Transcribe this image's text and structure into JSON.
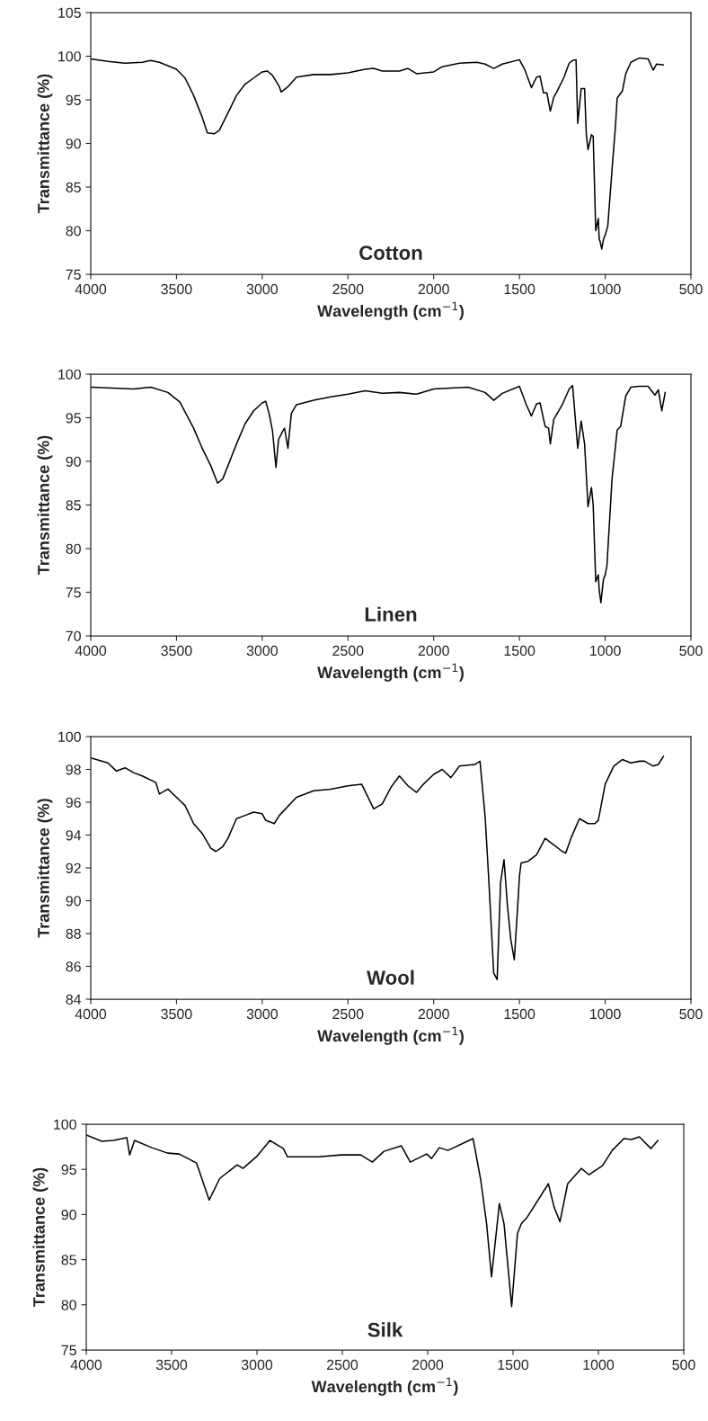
{
  "chart_data": [
    {
      "type": "line",
      "xlabel": "Wavelength (cm$^{−1}$)",
      "ylabel": "Transmittance (%)",
      "annotations": [
        "Cotton"
      ],
      "xlim": [
        4000,
        500
      ],
      "xticks": [
        4000,
        3500,
        3000,
        2500,
        2000,
        1500,
        1000,
        500
      ],
      "ylim": [
        75,
        105
      ],
      "yticks": [
        75,
        80,
        85,
        90,
        95,
        100,
        105
      ],
      "grid": false,
      "legend": false,
      "marker": "none",
      "line_style": "solid",
      "series": [
        {
          "color": "#000000",
          "x": [
            4000,
            3900,
            3800,
            3700,
            3650,
            3600,
            3500,
            3450,
            3400,
            3350,
            3320,
            3280,
            3250,
            3200,
            3150,
            3100,
            3050,
            3000,
            2970,
            2940,
            2900,
            2890,
            2850,
            2800,
            2700,
            2600,
            2500,
            2400,
            2350,
            2300,
            2200,
            2150,
            2100,
            2000,
            1950,
            1850,
            1750,
            1700,
            1650,
            1600,
            1500,
            1470,
            1430,
            1400,
            1380,
            1360,
            1340,
            1320,
            1300,
            1280,
            1240,
            1210,
            1190,
            1170,
            1160,
            1140,
            1120,
            1110,
            1100,
            1080,
            1070,
            1055,
            1040,
            1035,
            1030,
            1020,
            1010,
            1000,
            985,
            960,
            940,
            930,
            900,
            880,
            850,
            800,
            750,
            720,
            700,
            660
          ],
          "values": [
            99.7,
            99.4,
            99.2,
            99.3,
            99.5,
            99.3,
            98.5,
            97.5,
            95.5,
            93,
            91.2,
            91.1,
            91.5,
            93.5,
            95.5,
            96.8,
            97.5,
            98.2,
            98.3,
            97.8,
            96.5,
            95.9,
            96.5,
            97.6,
            97.9,
            97.9,
            98.1,
            98.5,
            98.6,
            98.3,
            98.3,
            98.6,
            98.0,
            98.2,
            98.8,
            99.2,
            99.3,
            99.1,
            98.6,
            99.1,
            99.6,
            98.5,
            96.4,
            97.6,
            97.7,
            95.8,
            95.8,
            93.7,
            95.3,
            96.0,
            97.6,
            99.2,
            99.5,
            99.6,
            92.3,
            96.3,
            96.3,
            91.0,
            89.3,
            91.0,
            90.8,
            80.0,
            81.4,
            79.0,
            78.8,
            77.9,
            79.0,
            79.5,
            80.5,
            87,
            92,
            95.2,
            96,
            98,
            99.3,
            99.8,
            99.7,
            98.4,
            99.1,
            99.0
          ]
        }
      ]
    },
    {
      "type": "line",
      "xlabel": "Wavelength (cm$^{−1}$)",
      "ylabel": "Transmittance (%)",
      "annotations": [
        "Linen"
      ],
      "xlim": [
        4000,
        500
      ],
      "xticks": [
        4000,
        3500,
        3000,
        2500,
        2000,
        1500,
        1000,
        500
      ],
      "ylim": [
        70,
        100
      ],
      "yticks": [
        70,
        75,
        80,
        85,
        90,
        95,
        100
      ],
      "grid": false,
      "legend": false,
      "marker": "none",
      "line_style": "solid",
      "series": [
        {
          "color": "#000000",
          "x": [
            4000,
            3750,
            3650,
            3550,
            3480,
            3400,
            3350,
            3300,
            3260,
            3230,
            3200,
            3150,
            3100,
            3050,
            3000,
            2980,
            2960,
            2940,
            2920,
            2905,
            2880,
            2870,
            2850,
            2830,
            2800,
            2700,
            2600,
            2500,
            2400,
            2300,
            2200,
            2100,
            2000,
            1900,
            1800,
            1700,
            1650,
            1600,
            1500,
            1460,
            1430,
            1400,
            1380,
            1350,
            1330,
            1320,
            1300,
            1250,
            1210,
            1190,
            1160,
            1140,
            1120,
            1100,
            1080,
            1070,
            1055,
            1040,
            1035,
            1025,
            1010,
            1000,
            990,
            960,
            930,
            910,
            880,
            850,
            800,
            750,
            710,
            690,
            670,
            650
          ],
          "values": [
            98.5,
            98.3,
            98.5,
            97.9,
            96.8,
            93.8,
            91.5,
            89.5,
            87.5,
            88,
            89.5,
            92,
            94.3,
            95.8,
            96.7,
            96.9,
            95.5,
            93.5,
            89.3,
            92.5,
            93.5,
            93.8,
            91.5,
            95.5,
            96.5,
            97.0,
            97.4,
            97.7,
            98.1,
            97.8,
            97.9,
            97.7,
            98.3,
            98.4,
            98.5,
            97.9,
            97.0,
            97.8,
            98.6,
            96.5,
            95.2,
            96.6,
            96.7,
            94.0,
            93.8,
            92.0,
            94.8,
            96.5,
            98.3,
            98.7,
            91.5,
            94.6,
            92,
            84.8,
            87.0,
            85,
            76.2,
            77.0,
            75.3,
            73.8,
            76.5,
            77.0,
            78,
            88,
            93.6,
            94.0,
            97.5,
            98.5,
            98.6,
            98.6,
            97.6,
            98.2,
            95.8,
            97.9
          ]
        }
      ]
    },
    {
      "type": "line",
      "xlabel": "Wavelength (cm$^{−1}$)",
      "ylabel": "Transmittance (%)",
      "annotations": [
        "Wool"
      ],
      "xlim": [
        4000,
        500
      ],
      "xticks": [
        4000,
        3500,
        3000,
        2500,
        2000,
        1500,
        1000,
        500
      ],
      "ylim": [
        84,
        100
      ],
      "yticks": [
        84,
        86,
        88,
        90,
        92,
        94,
        96,
        98,
        100
      ],
      "grid": false,
      "legend": false,
      "marker": "none",
      "line_style": "solid",
      "series": [
        {
          "color": "#000000",
          "x": [
            4000,
            3900,
            3850,
            3800,
            3750,
            3700,
            3620,
            3600,
            3550,
            3500,
            3450,
            3400,
            3350,
            3300,
            3270,
            3230,
            3200,
            3150,
            3100,
            3050,
            3000,
            2980,
            2930,
            2900,
            2800,
            2700,
            2600,
            2500,
            2420,
            2350,
            2300,
            2250,
            2200,
            2150,
            2100,
            2060,
            2000,
            1950,
            1900,
            1850,
            1760,
            1730,
            1700,
            1680,
            1650,
            1630,
            1610,
            1590,
            1570,
            1550,
            1530,
            1510,
            1500,
            1490,
            1450,
            1400,
            1350,
            1300,
            1250,
            1230,
            1200,
            1150,
            1100,
            1060,
            1040,
            1000,
            950,
            900,
            850,
            800,
            770,
            720,
            690,
            660
          ],
          "values": [
            98.7,
            98.4,
            97.9,
            98.1,
            97.8,
            97.6,
            97.2,
            96.5,
            96.8,
            96.3,
            95.8,
            94.7,
            94.1,
            93.2,
            93.0,
            93.3,
            93.8,
            95.0,
            95.2,
            95.4,
            95.3,
            94.9,
            94.7,
            95.2,
            96.3,
            96.7,
            96.8,
            97.0,
            97.1,
            95.6,
            95.9,
            96.9,
            97.6,
            97.0,
            96.6,
            97.1,
            97.7,
            98.0,
            97.5,
            98.2,
            98.3,
            98.5,
            95.1,
            91.5,
            85.6,
            85.2,
            91.1,
            92.5,
            89.7,
            87.6,
            86.4,
            89.7,
            91.5,
            92.3,
            92.4,
            92.8,
            93.8,
            93.4,
            93.0,
            92.9,
            93.8,
            95.0,
            94.7,
            94.7,
            94.9,
            97.1,
            98.2,
            98.6,
            98.4,
            98.5,
            98.5,
            98.2,
            98.3,
            98.8
          ]
        }
      ]
    },
    {
      "type": "line",
      "xlabel": "Wavelength (cm$^{−1}$)",
      "ylabel": "Transmittance (%)",
      "annotations": [
        "Silk"
      ],
      "xlim": [
        4000,
        500
      ],
      "xticks": [
        4000,
        3500,
        3000,
        2500,
        2000,
        1500,
        1000,
        500
      ],
      "ylim": [
        75,
        100
      ],
      "yticks": [
        75,
        80,
        85,
        90,
        95,
        100
      ],
      "grid": false,
      "legend": false,
      "marker": "none",
      "line_style": "solid",
      "series": [
        {
          "color": "#000000",
          "x": [
            4000,
            3909,
            3841,
            3762,
            3746,
            3717,
            3615,
            3524,
            3456,
            3354,
            3280,
            3218,
            3116,
            3082,
            3003,
            2924,
            2845,
            2822,
            2641,
            2505,
            2392,
            2324,
            2256,
            2154,
            2102,
            2006,
            1977,
            1932,
            1882,
            1734,
            1689,
            1655,
            1626,
            1580,
            1553,
            1508,
            1474,
            1451,
            1417,
            1293,
            1259,
            1225,
            1180,
            1100,
            1055,
            976,
            919,
            851,
            806,
            760,
            692,
            651
          ],
          "values": [
            98.8,
            98.1,
            98.2,
            98.5,
            96.6,
            98.2,
            97.4,
            96.8,
            96.7,
            95.7,
            91.6,
            94.0,
            95.5,
            95.1,
            96.4,
            98.2,
            97.3,
            96.4,
            96.4,
            96.6,
            96.6,
            95.8,
            97.0,
            97.6,
            95.8,
            96.7,
            96.2,
            97.4,
            97.1,
            98.4,
            93.8,
            89.0,
            83.1,
            91.2,
            89.0,
            79.8,
            87.9,
            89.0,
            89.7,
            93.4,
            90.8,
            89.2,
            93.4,
            95.1,
            94.4,
            95.4,
            97.1,
            98.4,
            98.3,
            98.6,
            97.3,
            98.2
          ]
        }
      ]
    }
  ]
}
